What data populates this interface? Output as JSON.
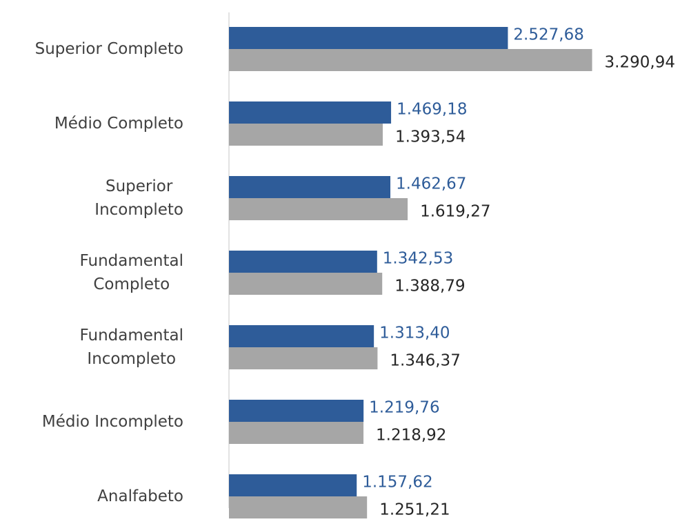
{
  "chart_data": {
    "type": "bar",
    "orientation": "horizontal",
    "categories": [
      "Superior Completo",
      "Médio Completo",
      "Superior\nIncompleto",
      "Fundamental\nCompleto",
      "Fundamental\nIncompleto",
      "Médio Incompleto",
      "Analfabeto"
    ],
    "series": [
      {
        "color": "#2e5c99",
        "values": [
          2527.68,
          1469.18,
          1462.67,
          1342.53,
          1313.4,
          1219.76,
          1157.62
        ],
        "value_labels": [
          "2.527,68",
          "1.469,18",
          "1.462,67",
          "1.342,53",
          "1.313,40",
          "1.219,76",
          "1.157,62"
        ]
      },
      {
        "color": "#a6a6a6",
        "values": [
          3290.94,
          1393.54,
          1619.27,
          1388.79,
          1346.37,
          1218.92,
          1251.21
        ],
        "value_labels": [
          "3.290,94",
          "1.393,54",
          "1.619,27",
          "1.388,79",
          "1.346,37",
          "1.218,92",
          "1.251,21"
        ]
      }
    ],
    "xlim": [
      0,
      3500
    ]
  }
}
